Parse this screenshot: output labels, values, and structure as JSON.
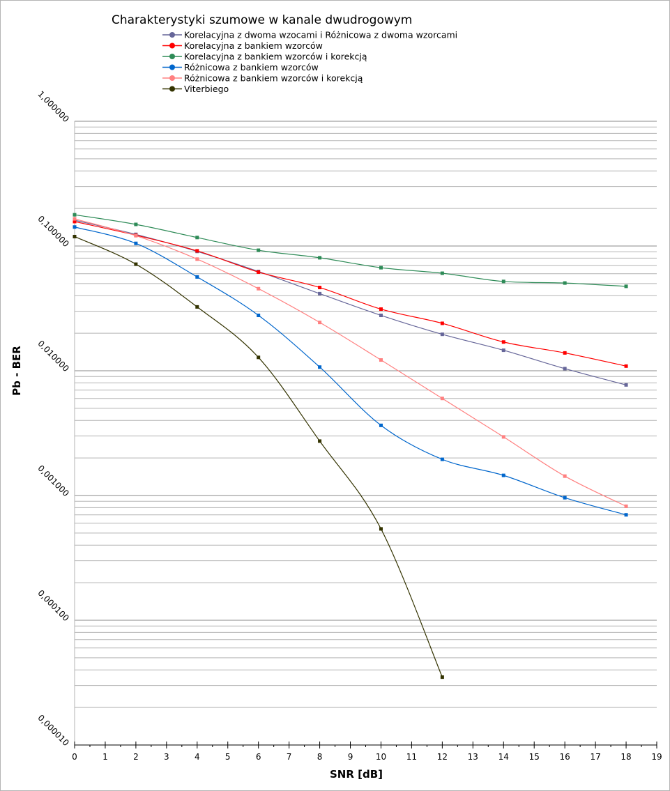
{
  "chart_data": {
    "type": "scatter",
    "title": "Charakterystyki szumowe w kanale dwudrogowym",
    "xlabel": "SNR [dB]",
    "ylabel": "Pb - BER",
    "xlim": [
      0,
      19
    ],
    "ylim": [
      1e-05,
      1
    ],
    "yscale": "log",
    "x_ticks": [
      "0",
      "1",
      "2",
      "3",
      "4",
      "5",
      "6",
      "7",
      "8",
      "9",
      "10",
      "11",
      "12",
      "13",
      "14",
      "15",
      "16",
      "17",
      "18",
      "19"
    ],
    "y_ticks": [
      "1,000000",
      "0,100000",
      "0,010000",
      "0,001000",
      "0,000100",
      "0,000010"
    ],
    "grid": true,
    "legend_position": "top",
    "series": [
      {
        "name": "Korelacyjna z dwoma wzocami i Różnicowa z dwoma wzorcami",
        "color": "#666699",
        "x": [
          0,
          2,
          4,
          6,
          8,
          10,
          12,
          14,
          16,
          18
        ],
        "y": [
          0.161,
          0.124,
          0.0905,
          0.0625,
          0.0415,
          0.0278,
          0.0196,
          0.0146,
          0.0104,
          0.0077
        ]
      },
      {
        "name": "Korelacyjna z bankiem wzorców",
        "color": "#ff0000",
        "x": [
          0,
          2,
          4,
          6,
          8,
          10,
          12,
          14,
          16,
          18
        ],
        "y": [
          0.157,
          0.122,
          0.0915,
          0.0618,
          0.0465,
          0.0312,
          0.024,
          0.017,
          0.0139,
          0.0109
        ]
      },
      {
        "name": "Korelacyjna z bankiem wzorców i korekcją",
        "color": "#2e8b57",
        "x": [
          0,
          2,
          4,
          6,
          8,
          10,
          12,
          14,
          16,
          18
        ],
        "y": [
          0.178,
          0.149,
          0.117,
          0.0925,
          0.0805,
          0.067,
          0.0605,
          0.052,
          0.0505,
          0.0475
        ]
      },
      {
        "name": "Różnicowa z bankiem wzorców",
        "color": "#0066cc",
        "x": [
          0,
          2,
          4,
          6,
          8,
          10,
          12,
          14,
          16,
          18
        ],
        "y": [
          0.142,
          0.105,
          0.0565,
          0.0278,
          0.0107,
          0.00365,
          0.00195,
          0.00145,
          0.00096,
          0.0007
        ]
      },
      {
        "name": "Różnicowa z bankiem wzorców i korekcją",
        "color": "#ff8080",
        "x": [
          0,
          2,
          4,
          6,
          8,
          10,
          12,
          14,
          16,
          18
        ],
        "y": [
          0.165,
          0.121,
          0.0785,
          0.0455,
          0.0244,
          0.0122,
          0.006,
          0.00295,
          0.00143,
          0.00082
        ]
      },
      {
        "name": "Viterbiego",
        "color": "#333300",
        "x": [
          0,
          2,
          4,
          6,
          8,
          10,
          12
        ],
        "y": [
          0.119,
          0.0715,
          0.0325,
          0.0128,
          0.00273,
          0.00054,
          3.5e-05
        ]
      }
    ]
  }
}
